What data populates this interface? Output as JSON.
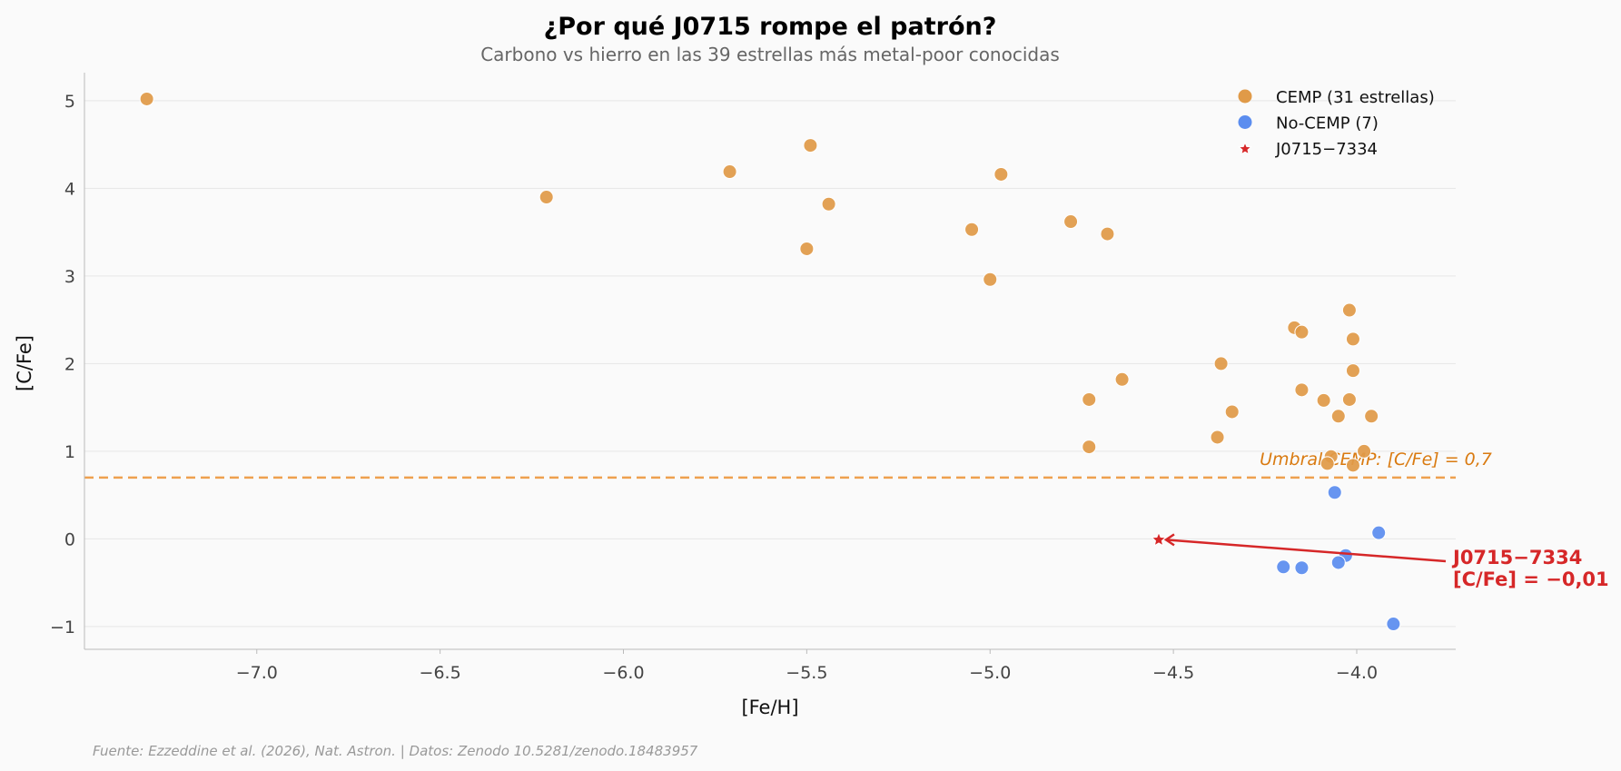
{
  "chart_data": {
    "type": "scatter",
    "title": "¿Por qué J0715 rompe el patrón?",
    "subtitle": "Carbono vs hierro en las 39 estrellas más metal-poor conocidas",
    "xlabel": "[Fe/H]",
    "ylabel": "[C/Fe]",
    "xlim": [
      -7.47,
      -3.73
    ],
    "ylim": [
      -1.26,
      5.32
    ],
    "xticks": [
      -7.0,
      -6.5,
      -6.0,
      -5.5,
      -5.0,
      -4.5,
      -4.0
    ],
    "xtick_labels": [
      "−7.0",
      "−6.5",
      "−6.0",
      "−5.5",
      "−5.0",
      "−4.5",
      "−4.0"
    ],
    "yticks": [
      -1,
      0,
      1,
      2,
      3,
      4,
      5
    ],
    "ytick_labels": [
      "−1",
      "0",
      "1",
      "2",
      "3",
      "4",
      "5"
    ],
    "grid": "horizontal",
    "legend_position": "top-right",
    "series": [
      {
        "name": "CEMP (31 estrellas)",
        "color": "#e09a48",
        "marker": "circle",
        "x": [
          -7.3,
          -6.21,
          -5.71,
          -5.49,
          -5.44,
          -5.5,
          -4.97,
          -5.05,
          -5.0,
          -4.78,
          -4.68,
          -4.73,
          -4.73,
          -4.64,
          -4.37,
          -4.34,
          -4.38,
          -4.17,
          -4.15,
          -4.15,
          -4.09,
          -4.05,
          -4.02,
          -4.01,
          -4.01,
          -4.02,
          -3.96,
          -3.98,
          -4.07,
          -4.08,
          -4.01
        ],
        "y": [
          5.02,
          3.9,
          4.19,
          4.49,
          3.82,
          3.31,
          4.16,
          3.53,
          2.96,
          3.62,
          3.48,
          1.59,
          1.05,
          1.82,
          2.0,
          1.45,
          1.16,
          2.41,
          2.36,
          1.7,
          1.58,
          1.4,
          2.61,
          2.28,
          1.92,
          1.59,
          1.4,
          1.0,
          0.94,
          0.86,
          0.84
        ]
      },
      {
        "name": "No-CEMP (7)",
        "color": "#5b8def",
        "marker": "circle",
        "x": [
          -4.06,
          -3.94,
          -4.03,
          -4.05,
          -4.2,
          -4.15,
          -3.9
        ],
        "y": [
          0.53,
          0.07,
          -0.19,
          -0.27,
          -0.32,
          -0.33,
          -0.97
        ]
      },
      {
        "name": "J0715−7334",
        "color": "#d62728",
        "marker": "star",
        "x": [
          -4.54
        ],
        "y": [
          -0.01
        ]
      }
    ],
    "threshold": {
      "y": 0.7,
      "label": "Umbral CEMP: [C/Fe] = 0,7",
      "color": "#eea04f",
      "text_color": "#d97a10"
    },
    "annotation": {
      "line1": "J0715−7334",
      "line2": "[C/Fe] = −0,01",
      "color": "#d62728",
      "x": -4.54,
      "y": -0.01
    },
    "footer": "Fuente: Ezzeddine et al. (2026), Nat. Astron. | Datos: Zenodo 10.5281/zenodo.18483957"
  }
}
